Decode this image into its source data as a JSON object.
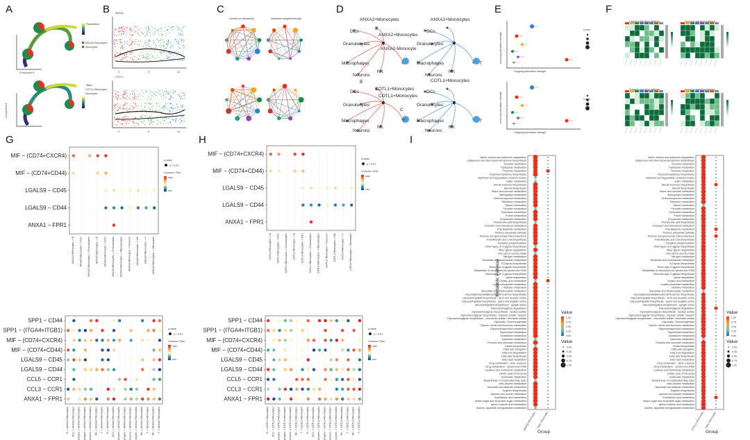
{
  "figure": {
    "panel_labels": [
      "A",
      "B",
      "C",
      "D",
      "E",
      "F",
      "G",
      "H",
      "I"
    ],
    "colors": {
      "red": "#e8321f",
      "green": "#1f8a4c",
      "blue": "#2f7fd0",
      "darkgreen": "#0e6b3a",
      "purple": "#5b2d8e"
    }
  },
  "chart_data": [
    {
      "panel": "A",
      "type": "scatter",
      "title": "Pseudotime trajectory",
      "legend_top": [
        "Pseudotime",
        "ANXA2+Monocytes",
        "Monocytes"
      ],
      "legend_bottom": [
        "State",
        "COTL1+Monocytes",
        "Monocytes"
      ],
      "xlabel": "Component 1",
      "ylabel": "Component 2"
    },
    {
      "panel": "B",
      "type": "scatter",
      "series": [
        {
          "name": "ANXA2",
          "y_ticks": [
            0,
            1,
            2,
            3,
            4,
            5
          ]
        },
        {
          "name": "COTL1",
          "y_ticks": [
            0,
            1,
            2,
            3,
            4,
            5
          ]
        }
      ],
      "x_ticks": [
        0,
        5,
        10
      ]
    },
    {
      "panel": "C",
      "type": "network",
      "titles": [
        "Number of interactions",
        "Interaction weights/strength"
      ]
    },
    {
      "panel": "D",
      "type": "network",
      "top_nodes": [
        "ANXA2+Monocytes",
        "B",
        "DCs",
        "ANXA2+Monocytes",
        "Granulocytes",
        "ANXA2-Monocyte",
        "Macrophages",
        "Neurons",
        "NK",
        "T"
      ],
      "bottom_nodes": [
        "COTL1+Monocytes",
        "B",
        "DCs",
        "COTL1+Monocytes",
        "Granulocytes",
        "C",
        "Macrophages",
        "Neurons",
        "NK",
        "T"
      ]
    },
    {
      "panel": "E",
      "type": "scatter",
      "xlabel": "Outgoing interaction strength",
      "ylabel": "Incoming interaction strength",
      "legend_title": "Count"
    },
    {
      "panel": "F",
      "type": "heatmap",
      "titles": [
        "Outgoing signaling patterns",
        "Incoming signaling patterns"
      ]
    },
    {
      "panel": "G",
      "type": "scatter",
      "rows": [
        "MIF − (CD74+CXCR4)",
        "MIF − (CD74+CD44)",
        "LGALS9 − CD45",
        "LGALS9 − CD44",
        "ANXA1 − FPR1"
      ],
      "columns": [
        "ANXA2+Monocytes -> B",
        "ANXA2+Monocytes -> DCs",
        "ANXA2+Monocytes -> Granulocytes",
        "ANXA2+Monocytes -> B",
        "ANXA2+Monocytes -> DCs",
        "ANXA2+Monocytes -> Granulocytes",
        "ANXA2+Monocytes -> Macrophages",
        "ANXA2+Monocytes -> Neurons",
        "ANXA2+Monocytes -> NK",
        "ANXA2+Monocytes -> T",
        "ANXA2+Monocytes -> Monocytes"
      ],
      "legend": {
        "pvalue_title": "p-value",
        "pvalue_entry": "p < 0.01",
        "prob_title": "Commun. Prob.",
        "prob_max": "max",
        "prob_min": "min"
      },
      "points": [
        {
          "r": 0,
          "c": 0,
          "v": 0.85
        },
        {
          "r": 0,
          "c": 2,
          "v": 0.7
        },
        {
          "r": 0,
          "c": 3,
          "v": 0.9
        },
        {
          "r": 0,
          "c": 4,
          "v": 0.95
        },
        {
          "r": 1,
          "c": 0,
          "v": 0.55
        },
        {
          "r": 1,
          "c": 3,
          "v": 0.6
        },
        {
          "r": 1,
          "c": 4,
          "v": 0.7
        },
        {
          "r": 2,
          "c": 4,
          "v": 0.5
        },
        {
          "r": 2,
          "c": 5,
          "v": 0.55
        },
        {
          "r": 2,
          "c": 6,
          "v": 0.45
        },
        {
          "r": 2,
          "c": 7,
          "v": 0.5
        },
        {
          "r": 2,
          "c": 8,
          "v": 0.55
        },
        {
          "r": 2,
          "c": 9,
          "v": 0.45
        },
        {
          "r": 2,
          "c": 10,
          "v": 0.5
        },
        {
          "r": 3,
          "c": 4,
          "v": 0.15
        },
        {
          "r": 3,
          "c": 5,
          "v": 0.2
        },
        {
          "r": 3,
          "c": 6,
          "v": 0.1
        },
        {
          "r": 3,
          "c": 7,
          "v": 0.5
        },
        {
          "r": 3,
          "c": 8,
          "v": 0.15
        },
        {
          "r": 3,
          "c": 9,
          "v": 0.25
        },
        {
          "r": 3,
          "c": 10,
          "v": 0.1
        },
        {
          "r": 4,
          "c": 5,
          "v": 0.95
        }
      ]
    },
    {
      "panel": "G-bottom",
      "type": "scatter",
      "rows": [
        "SPP1 − CD44",
        "SPP1 − (ITGA4+ITGB1)",
        "MIF − (CD74+CXCR4)",
        "MIF − (CD74+CD44)",
        "LGALS9 − CD45",
        "LGALS9 − CD44",
        "CCL5 − CCR1",
        "CCL3 − CCR1",
        "ANXA1 − FPR1"
      ],
      "columns": [
        "B -> ANXA2+Monocytes",
        "DCs -> ANXA2+Monocytes",
        "Granulocytes -> ANXA2+Monocytes",
        "Macrophages -> ANXA2+Monocytes",
        "Neurons -> ANXA2+Monocytes",
        "NK -> ANXA2+Monocytes",
        "T -> ANXA2+Monocytes",
        "B -> ANXA2+Monocytes",
        "DCs -> ANXA2+Monocytes",
        "Granulocytes -> ANXA2+Monocytes",
        "Macrophages -> ANXA2+Monocytes",
        "Neurons -> ANXA2+Monocytes",
        "Monocytes -> ANXA2+Monocytes",
        "NK -> ANXA2+Monocytes",
        "T -> ANXA2+Monocytes",
        "NK -> ANXA2+Monocytes",
        "T -> ANXA2+Monocytes"
      ],
      "legend": {
        "pvalue_title": "p-value",
        "pvalue_entry": "p < 0.01",
        "prob_title": "Commun. Prob.",
        "prob_max": "max",
        "prob_min": "min"
      },
      "density": 0.62
    },
    {
      "panel": "H",
      "type": "scatter",
      "rows": [
        "MIF − (CD74+CXCR4)",
        "MIF − (CD74+CD44)",
        "LGALS9 − CD45",
        "LGALS9 − CD44",
        "ANXA1 − FPR1"
      ],
      "columns": [
        "COTL1+Monocytes -> B",
        "COTL1+Monocytes -> DCs",
        "COTL1+Monocytes -> Granulocytes",
        "COTL1+Monocytes -> B",
        "COTL1+Monocytes -> DCs",
        "COTL1+Monocytes -> Granulocytes",
        "COTL1+Monocytes -> Macrophages",
        "COTL1+Monocytes -> Neurons",
        "COTL1+Monocytes -> NK",
        "COTL1+Monocytes -> T",
        "COTL1+Monocytes -> Monocytes"
      ],
      "legend": {
        "pvalue_title": "p-value",
        "pvalue_entry": "p < 0.01",
        "prob_title": "Commun. Prob.",
        "prob_max": "max",
        "prob_min": "min"
      },
      "points": [
        {
          "r": 0,
          "c": 0,
          "v": 0.85
        },
        {
          "r": 0,
          "c": 1,
          "v": 0.75
        },
        {
          "r": 0,
          "c": 3,
          "v": 0.9
        },
        {
          "r": 0,
          "c": 4,
          "v": 0.95
        },
        {
          "r": 1,
          "c": 0,
          "v": 0.55
        },
        {
          "r": 1,
          "c": 1,
          "v": 0.5
        },
        {
          "r": 1,
          "c": 3,
          "v": 0.6
        },
        {
          "r": 1,
          "c": 4,
          "v": 0.65
        },
        {
          "r": 2,
          "c": 4,
          "v": 0.5
        },
        {
          "r": 2,
          "c": 5,
          "v": 0.55
        },
        {
          "r": 2,
          "c": 6,
          "v": 0.45
        },
        {
          "r": 2,
          "c": 7,
          "v": 0.5
        },
        {
          "r": 2,
          "c": 8,
          "v": 0.55
        },
        {
          "r": 2,
          "c": 9,
          "v": 0.45
        },
        {
          "r": 2,
          "c": 10,
          "v": 0.5
        },
        {
          "r": 3,
          "c": 4,
          "v": 0.15
        },
        {
          "r": 3,
          "c": 5,
          "v": 0.2
        },
        {
          "r": 3,
          "c": 6,
          "v": 0.1
        },
        {
          "r": 3,
          "c": 7,
          "v": 0.5
        },
        {
          "r": 3,
          "c": 8,
          "v": 0.15
        },
        {
          "r": 3,
          "c": 9,
          "v": 0.25
        },
        {
          "r": 3,
          "c": 10,
          "v": 0.1
        },
        {
          "r": 4,
          "c": 5,
          "v": 0.95
        }
      ]
    },
    {
      "panel": "H-bottom",
      "type": "scatter",
      "rows": [
        "SPP1 − CD44",
        "SPP1 − (ITGA4+ITGB1)",
        "MIF − (CD74+CXCR4)",
        "MIF − (CD74+CD44)",
        "LGALS9 − CD45",
        "LGALS9 − CD44",
        "CCL5 − CCR1",
        "CCL3 − CCR1",
        "ANXA1 − FPR1"
      ],
      "columns": [
        "B -> COTL1+Monocytes",
        "DCs -> COTL1+Monocytes",
        "Granulocytes -> COTL1+Monocytes",
        "Macrophages -> COTL1+Monocytes",
        "Neurons -> COTL1+Monocytes",
        "NK -> COTL1+Monocytes",
        "T -> COTL1+Monocytes",
        "B -> COTL1+Monocytes",
        "DCs -> COTL1+Monocytes",
        "Granulocytes -> COTL1+Monocytes",
        "Macrophages -> COTL1+Monocytes",
        "Neurons -> COTL1+Monocytes",
        "Monocytes -> COTL1+Monocytes",
        "NK -> COTL1+Monocytes",
        "T -> COTL1+Monocytes",
        "NK -> COTL1+Monocytes",
        "T -> COTL1+Monocytes"
      ],
      "legend": {
        "pvalue_title": "p-value",
        "pvalue_entry": "p < 0.01",
        "prob_title": "Commun. Prob.",
        "prob_max": "max",
        "prob_min": "min"
      },
      "density": 0.62
    },
    {
      "panel": "I",
      "type": "scatter",
      "xlabel": "Group",
      "ylabel": "Metabolic Pathway",
      "groups_left": [
        "ANXA2+Monocytes",
        "Other Monocytes"
      ],
      "groups_right": [
        "COTL1+Monocytes",
        "Other Monocytes"
      ],
      "legend_value": {
        "title": "Value",
        "ticks": [
          "1.00",
          "0.75",
          "0.50",
          "0.25",
          "0.00"
        ]
      },
      "legend_size": {
        "title": "Value",
        "ticks": [
          "0.00",
          "0.25",
          "0.50",
          "0.75",
          "1.00"
        ]
      },
      "pathways": [
        "Valine, leucine and isoleucine degradation",
        "Ubiquinone and other terpenoid-quinone biosynthesis",
        "Tyrosine metabolism",
        "Tryptophan metabolism",
        "Thiamine metabolism",
        "Terpenoid backbone biosynthesis",
        "Synthesis and degradation of ketone bodies",
        "Sulfur metabolism",
        "Steroid hormone biosynthesis",
        "Steroid biosynthesis",
        "Starch and sucrose metabolism",
        "Sphingolipid metabolism",
        "Selenocompound metabolism",
        "Riboflavin metabolism",
        "Retinol metabolism",
        "Pyruvate metabolism",
        "Pyrimidine metabolism",
        "Purine metabolism",
        "Propanoate metabolism",
        "Primary bile acid biosynthesis",
        "Porphyrin and chlorophyll metabolism",
        "Phenylalanine metabolism",
        "Pentose phosphate pathway",
        "Pentose and glucuronate interconversions",
        "Pantothenate and CoA biosynthesis",
        "Oxidative phosphorylation",
        "Other types of O-glycan biosynthesis",
        "Other glycan degradation",
        "One carbon pool by folate",
        "Nitrogen metabolism",
        "Nicotinate and nicotinamide metabolism",
        "N-Glycan biosynthesis",
        "Mucin type O-glycan biosynthesis",
        "Metabolism of xenobiotics by cytochrome P450",
        "Mannose type O-glycan biosynthesis",
        "Lysine degradation",
        "Linoleic acid metabolism",
        "Inositol phosphate metabolism",
        "Histidine metabolism",
        "Glyoxylate and dicarboxylate metabolism",
        "Glycosylphosphatidylinositol (GPI)-anchor biosynthesis",
        "Glycosphingolipid biosynthesis - lacto and neolacto series",
        "Glycosphingolipid biosynthesis - globo and isoglobo series",
        "Glycosphingolipid biosynthesis - ganglio series",
        "Glycosaminoglycan degradation",
        "Glycosaminoglycan biosynthesis - keratan sulfate",
        "Glycosaminoglycan biosynthesis - heparan sulfate / heparin",
        "Glycosaminoglycan biosynthesis - chondroitin sulfate / dermatan sulfate",
        "Glycolysis / Gluconeogenesis",
        "Glycine, serine and threonine metabolism",
        "Glycerophospholipid metabolism",
        "Glycerolipid metabolism",
        "Glutathione metabolism",
        "Galactose metabolism",
        "Fructose and mannose metabolism",
        "Folate biosynthesis",
        "Fatty acid elongation",
        "Fatty acid degradation",
        "Fatty acid biosynthesis",
        "Ether lipid metabolism",
        "Drug metabolism - other enzymes",
        "Drug metabolism - cytochrome P450",
        "Cysteine and methionine metabolism",
        "Citrate cycle (TCA cycle)",
        "Butanoate metabolism",
        "Biosynthesis of unsaturated fatty acids",
        "beta-Alanine metabolism",
        "Ascorbate and aldarate metabolism",
        "Arginine biosynthesis",
        "Arginine and proline metabolism",
        "Arachidonic acid metabolism",
        "Amino sugar and nucleotide sugar metabolism",
        "alpha-Linolenic acid metabolism",
        "Alanine, aspartate and glutamate metabolism"
      ]
    }
  ]
}
